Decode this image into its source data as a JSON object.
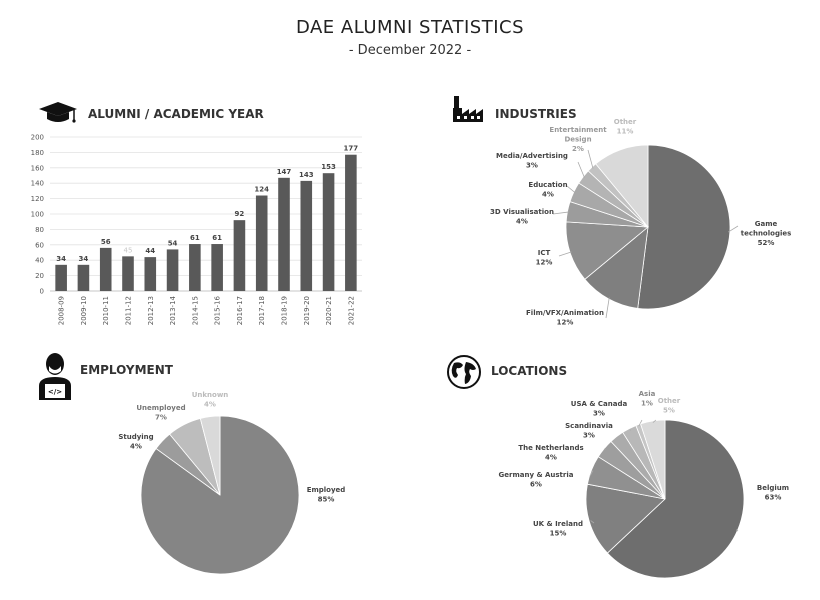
{
  "header": {
    "title": "DAE ALUMNI STATISTICS",
    "subtitle": "- December 2022 -"
  },
  "panels": {
    "alumni": {
      "title": "ALUMNI / ACADEMIC YEAR",
      "icon": "graduation-cap-icon"
    },
    "industries": {
      "title": "INDUSTRIES",
      "icon": "factory-icon"
    },
    "employment": {
      "title": "EMPLOYMENT",
      "icon": "developer-icon"
    },
    "locations": {
      "title": "LOCATIONS",
      "icon": "globe-icon"
    }
  },
  "chart_data": [
    {
      "type": "bar",
      "title": "ALUMNI / ACADEMIC YEAR",
      "categories": [
        "2008-09",
        "2009-10",
        "2010-11",
        "2011-12",
        "2012-13",
        "2013-14",
        "2014-15",
        "2015-16",
        "2016-17",
        "2017-18",
        "2018-19",
        "2019-20",
        "2020-21",
        "2021-22"
      ],
      "values": [
        34,
        34,
        56,
        45,
        44,
        54,
        61,
        61,
        92,
        124,
        147,
        143,
        153,
        177
      ],
      "data_labels": [
        "34",
        "34",
        "56",
        "45",
        "44",
        "54",
        "61",
        "61",
        "92",
        "124",
        "147",
        "143",
        "153",
        "177"
      ],
      "highlight_muted_label_index": 3,
      "ylim": [
        0,
        200
      ],
      "yticks": [
        0,
        20,
        40,
        60,
        80,
        100,
        120,
        140,
        160,
        180,
        200
      ],
      "grid": true,
      "bar_color": "#595959",
      "xlabel": "",
      "ylabel": ""
    },
    {
      "type": "pie",
      "title": "INDUSTRIES",
      "slices": [
        {
          "label": "Game technologies",
          "lines": [
            "Game",
            "technologies",
            "52%"
          ],
          "value": 52,
          "color": "#6e6e6e",
          "text_color": "#444444"
        },
        {
          "label": "Film/VFX/Animation",
          "lines": [
            "Film/VFX/Animation",
            "12%"
          ],
          "value": 12,
          "color": "#7f7f7f",
          "text_color": "#444444"
        },
        {
          "label": "ICT",
          "lines": [
            "ICT",
            "12%"
          ],
          "value": 12,
          "color": "#8e8e8e",
          "text_color": "#444444"
        },
        {
          "label": "3D Visualisation",
          "lines": [
            "3D Visualisation",
            "4%"
          ],
          "value": 4,
          "color": "#9c9c9c",
          "text_color": "#444444"
        },
        {
          "label": "Education",
          "lines": [
            "Education",
            "4%"
          ],
          "value": 4,
          "color": "#a8a8a8",
          "text_color": "#444444"
        },
        {
          "label": "Media/Advertising",
          "lines": [
            "Media/Advertising",
            "3%"
          ],
          "value": 3,
          "color": "#b4b4b4",
          "text_color": "#444444"
        },
        {
          "label": "Entertainment Design",
          "lines": [
            "Entertainment",
            "Design",
            "2%"
          ],
          "value": 2,
          "color": "#c2c2c2",
          "text_color": "#999999"
        },
        {
          "label": "Other",
          "lines": [
            "Other",
            "11%"
          ],
          "value": 11,
          "color": "#d9d9d9",
          "text_color": "#bbbbbb"
        }
      ]
    },
    {
      "type": "pie",
      "title": "EMPLOYMENT",
      "slices": [
        {
          "label": "Employed",
          "lines": [
            "Employed",
            "85%"
          ],
          "value": 85,
          "color": "#858585",
          "text_color": "#444444"
        },
        {
          "label": "Studying",
          "lines": [
            "Studying",
            "4%"
          ],
          "value": 4,
          "color": "#9c9c9c",
          "text_color": "#444444"
        },
        {
          "label": "Unemployed",
          "lines": [
            "Unemployed",
            "7%"
          ],
          "value": 7,
          "color": "#bdbdbd",
          "text_color": "#777777"
        },
        {
          "label": "Unknown",
          "lines": [
            "Unknown",
            "4%"
          ],
          "value": 4,
          "color": "#d9d9d9",
          "text_color": "#bbbbbb"
        }
      ]
    },
    {
      "type": "pie",
      "title": "LOCATIONS",
      "slices": [
        {
          "label": "Belgium",
          "lines": [
            "Belgium",
            "63%"
          ],
          "value": 63,
          "color": "#6e6e6e",
          "text_color": "#444444"
        },
        {
          "label": "UK & Ireland",
          "lines": [
            "UK & Ireland",
            "15%"
          ],
          "value": 15,
          "color": "#808080",
          "text_color": "#444444"
        },
        {
          "label": "Germany & Austria",
          "lines": [
            "Germany & Austria",
            "6%"
          ],
          "value": 6,
          "color": "#909090",
          "text_color": "#444444"
        },
        {
          "label": "The Netherlands",
          "lines": [
            "The Netherlands",
            "4%"
          ],
          "value": 4,
          "color": "#9e9e9e",
          "text_color": "#444444"
        },
        {
          "label": "Scandinavia",
          "lines": [
            "Scandinavia",
            "3%"
          ],
          "value": 3,
          "color": "#ababab",
          "text_color": "#444444"
        },
        {
          "label": "USA & Canada",
          "lines": [
            "USA & Canada",
            "3%"
          ],
          "value": 3,
          "color": "#b8b8b8",
          "text_color": "#444444"
        },
        {
          "label": "Asia",
          "lines": [
            "Asia",
            "1%"
          ],
          "value": 1,
          "color": "#c6c6c6",
          "text_color": "#888888"
        },
        {
          "label": "Other",
          "lines": [
            "Other",
            "5%"
          ],
          "value": 5,
          "color": "#dadada",
          "text_color": "#bbbbbb"
        }
      ]
    }
  ]
}
